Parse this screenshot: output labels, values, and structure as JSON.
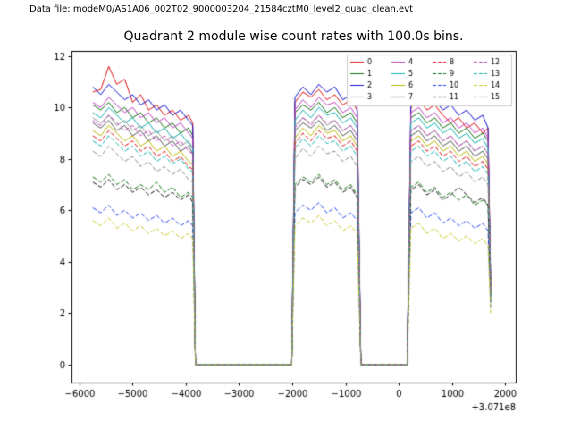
{
  "header": {
    "data_file": "Data file: modeM0/AS1A06_002T02_9000003204_21584cztM0_level2_quad_clean.evt"
  },
  "chart_data": {
    "type": "line",
    "title": "Quadrant 2 module wise count rates with 100.0s bins.",
    "xlabel": "",
    "ylabel": "",
    "x_offset_label": "+3.071e8",
    "xlim": [
      -6150,
      2200
    ],
    "ylim": [
      -0.7,
      12.2
    ],
    "x_tick_values": [
      -6000,
      -5000,
      -4000,
      -3000,
      -2000,
      -1000,
      0,
      1000,
      2000
    ],
    "x_tick_labels": [
      "−6000",
      "−5000",
      "−4000",
      "−3000",
      "−2000",
      "−1000",
      "0",
      "1000",
      "2000"
    ],
    "y_tick_values": [
      0,
      2,
      4,
      6,
      8,
      10,
      12
    ],
    "y_tick_labels": [
      "0",
      "2",
      "4",
      "6",
      "8",
      "10",
      "12"
    ],
    "grid": false,
    "legend": {
      "position": "upper right",
      "columns": 4
    },
    "x": [
      -5750,
      -5600,
      -5450,
      -5300,
      -5150,
      -5000,
      -4850,
      -4700,
      -4550,
      -4400,
      -4250,
      -4100,
      -3950,
      -3870,
      -3820,
      -3500,
      -3000,
      -2500,
      -2100,
      -2010,
      -1950,
      -1800,
      -1650,
      -1500,
      -1350,
      -1200,
      -1050,
      -900,
      -780,
      -710,
      -500,
      -200,
      100,
      160,
      230,
      380,
      530,
      680,
      830,
      980,
      1130,
      1280,
      1430,
      1580,
      1680,
      1730
    ],
    "series": [
      {
        "name": "0",
        "color": "#e01010",
        "linestyle": "solid",
        "values": [
          10.6,
          10.7,
          11.6,
          10.9,
          11.1,
          10.2,
          10.5,
          9.9,
          10.1,
          9.7,
          9.9,
          9.5,
          9.7,
          9.4,
          0,
          0,
          0,
          0,
          0,
          0,
          10.2,
          10.6,
          10.4,
          10.7,
          10.3,
          10.5,
          10.1,
          10.3,
          9.9,
          0,
          0,
          0,
          0,
          0,
          10.0,
          10.3,
          9.9,
          10.1,
          9.7,
          9.4,
          9.6,
          9.2,
          9.4,
          9.0,
          9.2,
          3.1
        ]
      },
      {
        "name": "1",
        "color": "#107010",
        "linestyle": "solid",
        "values": [
          10.1,
          9.9,
          10.2,
          9.8,
          10.0,
          9.6,
          9.8,
          9.4,
          9.6,
          9.2,
          9.4,
          9.0,
          9.2,
          8.9,
          0,
          0,
          0,
          0,
          0,
          0,
          9.8,
          10.1,
          9.9,
          10.2,
          9.8,
          10.0,
          9.6,
          9.8,
          9.4,
          0,
          0,
          0,
          0,
          0,
          9.6,
          9.8,
          9.4,
          9.6,
          9.2,
          9.4,
          9.0,
          9.2,
          8.8,
          9.0,
          8.7,
          2.9
        ]
      },
      {
        "name": "2",
        "color": "#1010d0",
        "linestyle": "solid",
        "values": [
          10.8,
          10.5,
          10.9,
          10.6,
          10.3,
          10.5,
          10.1,
          10.3,
          9.9,
          10.1,
          9.7,
          9.9,
          9.5,
          9.3,
          0,
          0,
          0,
          0,
          0,
          0,
          10.4,
          10.8,
          10.5,
          10.9,
          10.6,
          10.8,
          10.3,
          10.5,
          10.0,
          0,
          0,
          0,
          0,
          0,
          10.2,
          10.5,
          10.1,
          10.3,
          9.9,
          10.1,
          9.7,
          9.9,
          9.5,
          9.7,
          9.2,
          3.0
        ]
      },
      {
        "name": "3",
        "color": "#9a9a9a",
        "linestyle": "solid",
        "values": [
          9.6,
          9.4,
          9.7,
          9.3,
          9.5,
          9.1,
          9.3,
          8.9,
          9.1,
          8.7,
          8.9,
          8.5,
          8.7,
          8.4,
          0,
          0,
          0,
          0,
          0,
          0,
          9.3,
          9.6,
          9.4,
          9.7,
          9.3,
          9.5,
          9.1,
          9.3,
          8.9,
          0,
          0,
          0,
          0,
          0,
          9.1,
          9.3,
          8.9,
          9.1,
          8.7,
          8.9,
          8.5,
          8.7,
          8.3,
          8.5,
          8.2,
          2.8
        ]
      },
      {
        "name": "4",
        "color": "#c040c0",
        "linestyle": "solid",
        "values": [
          10.2,
          10.0,
          10.4,
          10.1,
          9.8,
          10.0,
          9.6,
          9.8,
          9.4,
          9.6,
          9.2,
          9.4,
          9.0,
          8.8,
          0,
          0,
          0,
          0,
          0,
          0,
          9.9,
          10.3,
          10.0,
          10.4,
          10.1,
          10.2,
          9.8,
          10.0,
          9.6,
          0,
          0,
          0,
          0,
          0,
          9.8,
          10.0,
          9.6,
          9.8,
          9.4,
          9.6,
          9.2,
          9.4,
          9.0,
          9.2,
          8.8,
          3.0
        ]
      },
      {
        "name": "5",
        "color": "#10b0b0",
        "linestyle": "solid",
        "values": [
          9.8,
          9.6,
          10.0,
          9.7,
          9.4,
          9.6,
          9.2,
          9.4,
          9.0,
          9.2,
          8.8,
          9.0,
          8.6,
          8.4,
          0,
          0,
          0,
          0,
          0,
          0,
          9.5,
          9.9,
          9.6,
          10.0,
          9.7,
          9.8,
          9.4,
          9.6,
          9.2,
          0,
          0,
          0,
          0,
          0,
          9.4,
          9.6,
          9.2,
          9.4,
          9.0,
          9.2,
          8.8,
          9.0,
          8.6,
          8.8,
          8.4,
          2.9
        ]
      },
      {
        "name": "6",
        "color": "#b8b800",
        "linestyle": "solid",
        "values": [
          9.1,
          8.9,
          9.3,
          9.0,
          8.7,
          8.9,
          8.5,
          8.7,
          8.3,
          8.5,
          8.1,
          8.3,
          7.9,
          7.8,
          0,
          0,
          0,
          0,
          0,
          0,
          8.8,
          9.2,
          8.9,
          9.3,
          9.0,
          9.1,
          8.7,
          8.9,
          8.5,
          0,
          0,
          0,
          0,
          0,
          8.7,
          8.9,
          8.5,
          8.7,
          8.3,
          8.5,
          8.1,
          8.3,
          7.9,
          8.1,
          7.8,
          2.8
        ]
      },
      {
        "name": "7",
        "color": "#555555",
        "linestyle": "solid",
        "values": [
          9.4,
          9.2,
          9.5,
          9.1,
          9.3,
          8.9,
          9.1,
          8.7,
          8.9,
          8.5,
          8.7,
          8.3,
          8.5,
          8.2,
          0,
          0,
          0,
          0,
          0,
          0,
          9.1,
          9.4,
          9.2,
          9.5,
          9.1,
          9.3,
          8.9,
          9.1,
          8.7,
          0,
          0,
          0,
          0,
          0,
          8.9,
          9.1,
          8.7,
          8.9,
          8.5,
          8.7,
          8.3,
          8.5,
          8.1,
          8.3,
          8.0,
          2.7
        ]
      },
      {
        "name": "8",
        "color": "#e01010",
        "linestyle": "dashed",
        "values": [
          8.9,
          8.7,
          9.1,
          8.8,
          8.5,
          8.7,
          8.3,
          8.5,
          8.1,
          8.3,
          7.9,
          8.1,
          7.7,
          7.6,
          0,
          0,
          0,
          0,
          0,
          0,
          8.6,
          9.0,
          8.7,
          9.1,
          8.8,
          8.9,
          8.5,
          8.7,
          8.3,
          0,
          0,
          0,
          0,
          0,
          8.5,
          8.7,
          8.3,
          8.5,
          8.1,
          8.3,
          7.9,
          8.1,
          7.7,
          7.9,
          7.6,
          2.7
        ]
      },
      {
        "name": "9",
        "color": "#107010",
        "linestyle": "dashed",
        "values": [
          7.3,
          7.1,
          7.4,
          7.0,
          7.2,
          6.8,
          7.0,
          6.8,
          7.1,
          6.7,
          6.9,
          6.5,
          6.7,
          6.5,
          0,
          0,
          0,
          0,
          0,
          0,
          7.0,
          7.3,
          7.1,
          7.4,
          7.0,
          7.2,
          6.8,
          7.0,
          6.6,
          0,
          0,
          0,
          0,
          0,
          6.9,
          7.1,
          6.7,
          6.9,
          6.5,
          6.7,
          6.4,
          6.6,
          6.2,
          6.4,
          6.2,
          2.4
        ]
      },
      {
        "name": "10",
        "color": "#2244ee",
        "linestyle": "dashed",
        "values": [
          6.1,
          5.9,
          6.2,
          5.8,
          6.0,
          5.7,
          5.9,
          5.6,
          5.8,
          5.5,
          5.7,
          5.4,
          5.6,
          5.4,
          0,
          0,
          0,
          0,
          0,
          0,
          5.9,
          6.2,
          6.0,
          6.3,
          5.9,
          6.1,
          5.7,
          5.9,
          5.6,
          0,
          0,
          0,
          0,
          0,
          5.9,
          6.1,
          5.7,
          5.9,
          5.5,
          5.7,
          5.4,
          5.6,
          5.3,
          5.5,
          5.2,
          2.2
        ]
      },
      {
        "name": "11",
        "color": "#111111",
        "linestyle": "dashed",
        "values": [
          7.1,
          6.9,
          7.2,
          6.8,
          7.0,
          6.7,
          6.9,
          6.6,
          6.8,
          6.5,
          6.7,
          6.4,
          6.6,
          6.3,
          0,
          0,
          0,
          0,
          0,
          0,
          6.9,
          7.2,
          7.0,
          7.3,
          6.9,
          7.1,
          6.7,
          6.9,
          6.5,
          0,
          0,
          0,
          0,
          0,
          6.8,
          7.0,
          6.6,
          6.8,
          6.4,
          6.6,
          6.9,
          6.6,
          6.3,
          6.5,
          6.2,
          2.5
        ]
      },
      {
        "name": "12",
        "color": "#c040c0",
        "linestyle": "dashed",
        "values": [
          9.5,
          9.3,
          9.7,
          9.4,
          9.1,
          9.3,
          8.9,
          9.1,
          8.7,
          8.9,
          8.5,
          8.7,
          8.3,
          8.2,
          0,
          0,
          0,
          0,
          0,
          0,
          9.2,
          9.6,
          9.3,
          9.7,
          9.4,
          9.5,
          9.1,
          9.3,
          8.9,
          0,
          0,
          0,
          0,
          0,
          9.1,
          9.3,
          8.9,
          9.1,
          8.7,
          8.9,
          8.5,
          8.7,
          8.3,
          8.5,
          8.2,
          2.9
        ]
      },
      {
        "name": "13",
        "color": "#10b0b0",
        "linestyle": "dashed",
        "values": [
          8.7,
          8.5,
          8.9,
          8.6,
          8.3,
          8.5,
          8.1,
          8.3,
          7.9,
          8.1,
          7.8,
          8.0,
          7.6,
          7.5,
          0,
          0,
          0,
          0,
          0,
          0,
          8.4,
          8.8,
          8.5,
          8.9,
          8.6,
          8.7,
          8.3,
          8.5,
          8.1,
          0,
          0,
          0,
          0,
          0,
          8.3,
          8.5,
          8.1,
          8.3,
          7.9,
          8.1,
          7.7,
          7.9,
          7.5,
          7.7,
          7.4,
          2.6
        ]
      },
      {
        "name": "14",
        "color": "#c8c820",
        "linestyle": "dashed",
        "values": [
          5.6,
          5.4,
          5.7,
          5.3,
          5.5,
          5.2,
          5.4,
          5.1,
          5.3,
          5.0,
          5.2,
          4.9,
          5.1,
          4.9,
          0,
          0,
          0,
          0,
          0,
          0,
          5.4,
          5.7,
          5.5,
          5.8,
          5.4,
          5.6,
          5.2,
          5.4,
          5.1,
          0,
          0,
          0,
          0,
          0,
          5.3,
          5.5,
          5.1,
          5.3,
          4.9,
          5.1,
          4.8,
          5.0,
          4.7,
          4.9,
          4.6,
          2.0
        ]
      },
      {
        "name": "15",
        "color": "#8a8a8a",
        "linestyle": "dashed",
        "values": [
          8.3,
          8.1,
          8.5,
          8.2,
          7.9,
          8.1,
          7.7,
          7.9,
          7.5,
          7.7,
          7.4,
          7.6,
          7.2,
          7.1,
          0,
          0,
          0,
          0,
          0,
          0,
          8.0,
          8.4,
          8.1,
          8.5,
          8.2,
          8.3,
          7.9,
          8.1,
          7.7,
          0,
          0,
          0,
          0,
          0,
          7.9,
          8.1,
          7.7,
          7.9,
          7.5,
          7.7,
          7.3,
          7.5,
          7.1,
          7.3,
          7.0,
          2.5
        ]
      }
    ]
  }
}
